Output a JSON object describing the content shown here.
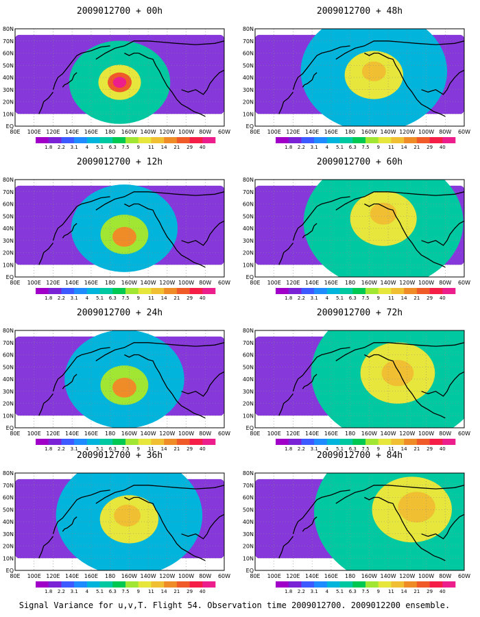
{
  "figure_caption": "Signal Variance for u,v,T. Flight 54. Observation time 2009012700. 2009012200 ensemble.",
  "colors": {
    "palette": [
      "#a000c8",
      "#7a22d6",
      "#3c5aff",
      "#1e8cff",
      "#00b4dc",
      "#00c8a0",
      "#00c850",
      "#a0e632",
      "#e6e63c",
      "#f0c032",
      "#f08c28",
      "#f05a28",
      "#f51e46",
      "#eb1e8c"
    ],
    "land_outline": "#000000",
    "grid_dots": "#888888",
    "background": "#ffffff"
  },
  "chart_data": {
    "type": "heatmap",
    "levels": [
      "1.8",
      "2.2",
      "3.1",
      "4",
      "5.1",
      "6.3",
      "7.5",
      "9",
      "11",
      "14",
      "21",
      "29",
      "40"
    ],
    "lon_labels": [
      "80E",
      "100E",
      "120E",
      "140E",
      "160E",
      "180",
      "160W",
      "140W",
      "120W",
      "100W",
      "80W",
      "60W"
    ],
    "lat_labels": [
      "80N",
      "70N",
      "60N",
      "50N",
      "40N",
      "30N",
      "20N",
      "10N",
      "EQ"
    ],
    "lon_range": [
      80,
      300
    ],
    "lat_range": [
      0,
      80
    ],
    "panels": [
      {
        "title": "2009012700 + 00h",
        "lead": 0,
        "max": 40,
        "blobs": [
          {
            "lon": 190,
            "lat": 36,
            "r": 38,
            "v": 5.1
          },
          {
            "lon": 190,
            "lat": 36,
            "r": 16,
            "v": 9
          },
          {
            "lon": 190,
            "lat": 36,
            "r": 9,
            "v": 21
          },
          {
            "lon": 190,
            "lat": 36,
            "r": 5,
            "v": 40
          }
        ]
      },
      {
        "title": "2009012700 + 12h",
        "lead": 12,
        "max": 14,
        "blobs": [
          {
            "lon": 195,
            "lat": 40,
            "r": 40,
            "v": 4
          },
          {
            "lon": 195,
            "lat": 35,
            "r": 18,
            "v": 7.5
          },
          {
            "lon": 195,
            "lat": 33,
            "r": 9,
            "v": 14
          }
        ]
      },
      {
        "title": "2009012700 + 24h",
        "lead": 24,
        "max": 14,
        "blobs": [
          {
            "lon": 195,
            "lat": 40,
            "r": 45,
            "v": 4
          },
          {
            "lon": 195,
            "lat": 35,
            "r": 18,
            "v": 7.5
          },
          {
            "lon": 195,
            "lat": 33,
            "r": 9,
            "v": 14
          }
        ]
      },
      {
        "title": "2009012700 + 36h",
        "lead": 36,
        "max": 11,
        "blobs": [
          {
            "lon": 200,
            "lat": 45,
            "r": 55,
            "v": 4
          },
          {
            "lon": 200,
            "lat": 42,
            "r": 22,
            "v": 9
          },
          {
            "lon": 198,
            "lat": 45,
            "r": 10,
            "v": 11
          }
        ]
      },
      {
        "title": "2009012700 + 48h",
        "lead": 48,
        "max": 11,
        "blobs": [
          {
            "lon": 205,
            "lat": 45,
            "r": 55,
            "v": 4
          },
          {
            "lon": 205,
            "lat": 42,
            "r": 22,
            "v": 9
          },
          {
            "lon": 205,
            "lat": 45,
            "r": 9,
            "v": 11
          }
        ]
      },
      {
        "title": "2009012700 + 60h",
        "lead": 60,
        "max": 11,
        "blobs": [
          {
            "lon": 215,
            "lat": 45,
            "r": 60,
            "v": 5.1
          },
          {
            "lon": 215,
            "lat": 48,
            "r": 25,
            "v": 9
          },
          {
            "lon": 215,
            "lat": 52,
            "r": 10,
            "v": 11
          }
        ]
      },
      {
        "title": "2009012700 + 72h",
        "lead": 72,
        "max": 11,
        "blobs": [
          {
            "lon": 230,
            "lat": 45,
            "r": 65,
            "v": 5.1
          },
          {
            "lon": 230,
            "lat": 45,
            "r": 28,
            "v": 9
          },
          {
            "lon": 230,
            "lat": 45,
            "r": 12,
            "v": 11
          }
        ]
      },
      {
        "title": "2009012700 + 84h",
        "lead": 84,
        "max": 11,
        "blobs": [
          {
            "lon": 240,
            "lat": 48,
            "r": 70,
            "v": 5.1
          },
          {
            "lon": 245,
            "lat": 50,
            "r": 30,
            "v": 9
          },
          {
            "lon": 250,
            "lat": 52,
            "r": 14,
            "v": 11
          }
        ]
      }
    ]
  }
}
